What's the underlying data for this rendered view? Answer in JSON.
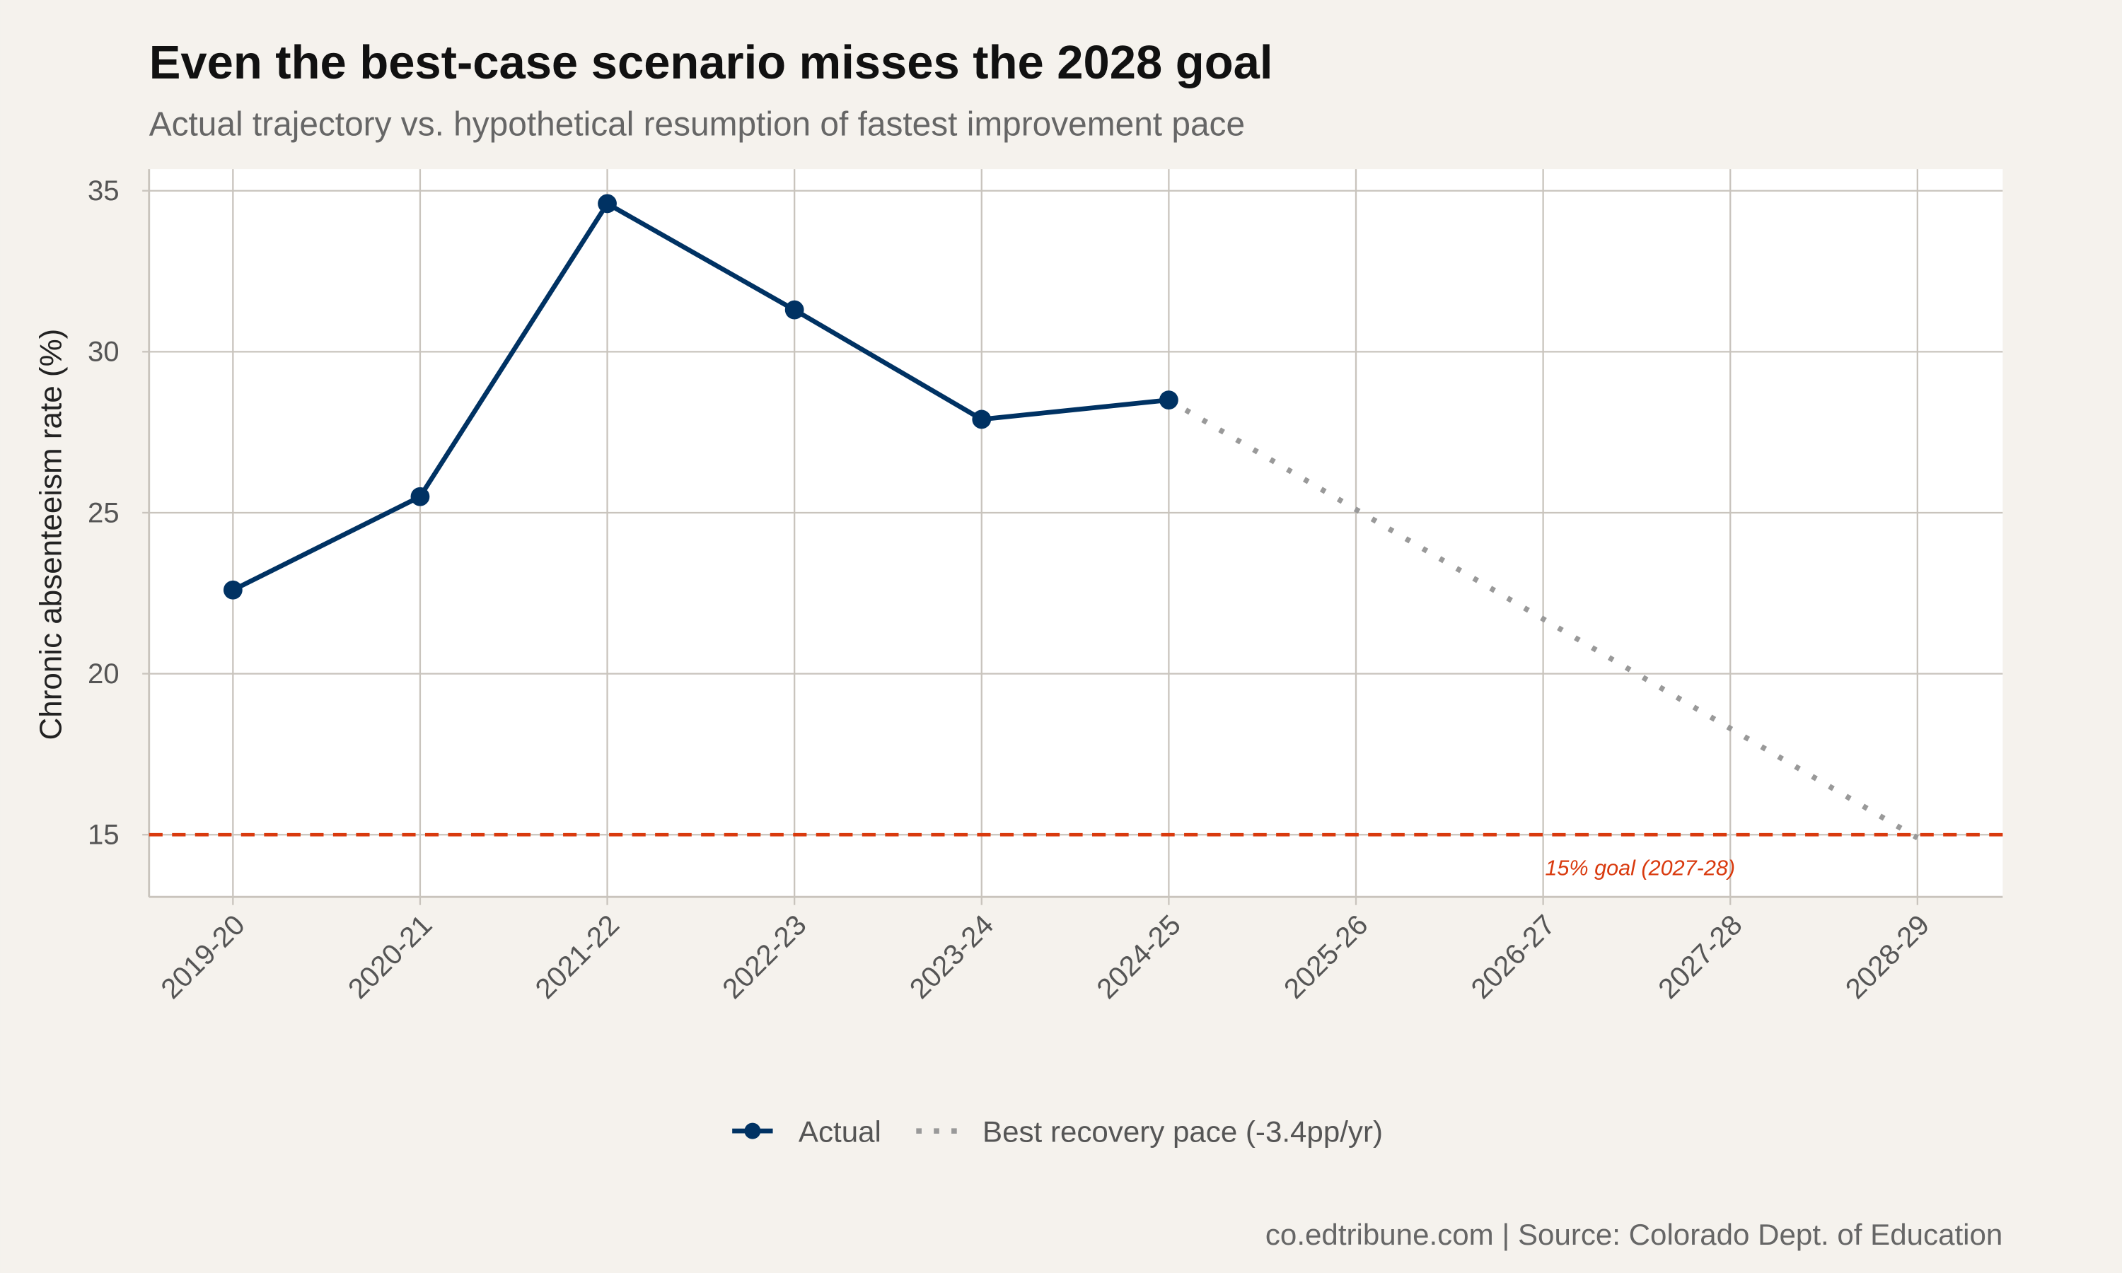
{
  "chart_data": {
    "type": "line",
    "title": "Even the best-case scenario misses the 2028 goal",
    "subtitle": "Actual trajectory vs. hypothetical resumption of fastest improvement pace",
    "xlabel": "",
    "ylabel": "Chronic absenteeism rate (%)",
    "categories": [
      "2019-20",
      "2020-21",
      "2021-22",
      "2022-23",
      "2023-24",
      "2024-25",
      "2025-26",
      "2026-27",
      "2027-28",
      "2028-29"
    ],
    "yticks": [
      15,
      20,
      25,
      30,
      35
    ],
    "ylim": [
      13.1,
      35.7
    ],
    "grid": true,
    "legend_position": "bottom",
    "series": [
      {
        "name": "Actual",
        "style": "solid-with-points",
        "color": "#003263",
        "x": [
          "2019-20",
          "2020-21",
          "2021-22",
          "2022-23",
          "2023-24",
          "2024-25"
        ],
        "values": [
          22.6,
          25.5,
          34.6,
          31.3,
          27.9,
          28.5
        ]
      },
      {
        "name": "Best recovery pace (-3.4pp/yr)",
        "style": "dotted",
        "color": "#999999",
        "x": [
          "2024-25",
          "2025-26",
          "2026-27",
          "2027-28",
          "2028-29"
        ],
        "values": [
          28.5,
          25.1,
          21.7,
          18.3,
          14.9
        ]
      }
    ],
    "reference_line": {
      "y": 15,
      "label": "15% goal (2027-28)",
      "color": "#d93a0e",
      "style": "dashed"
    },
    "caption": "co.edtribune.com | Source: Colorado Dept. of Education"
  },
  "colors": {
    "background": "#f5f2ed",
    "panel": "#ffffff",
    "grid": "#c9c4bd"
  }
}
